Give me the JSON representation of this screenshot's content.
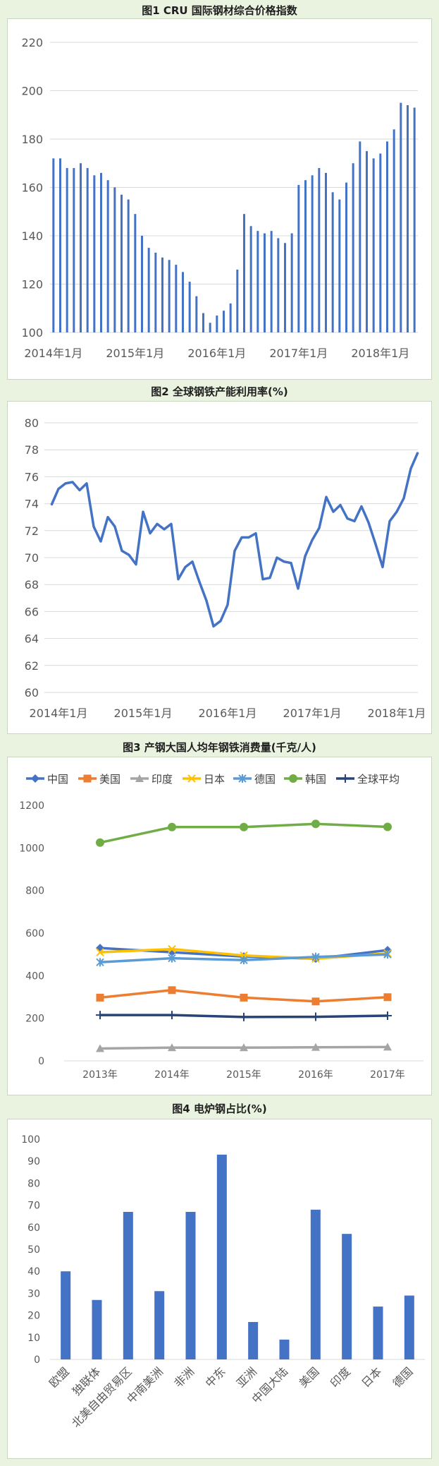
{
  "figures": [
    {
      "title": "图1    CRU 国际钢材综合价格指数"
    },
    {
      "title": "图2    全球钢铁产能利用率(%)"
    },
    {
      "title": "图3  产钢大国人均年钢铁消费量(千克/人)"
    },
    {
      "title": "图4    电炉钢占比(%)"
    }
  ],
  "chart_data": [
    {
      "type": "bar",
      "title": "图1    CRU 国际钢材综合价格指数",
      "ylim": [
        100,
        220
      ],
      "yticks": [
        100,
        120,
        140,
        160,
        180,
        200,
        220
      ],
      "xticks": [
        {
          "index": 0,
          "label": "2014年1月"
        },
        {
          "index": 12,
          "label": "2015年1月"
        },
        {
          "index": 24,
          "label": "2016年1月"
        },
        {
          "index": 36,
          "label": "2017年1月"
        },
        {
          "index": 48,
          "label": "2018年1月"
        }
      ],
      "color": "#4472c4",
      "values": [
        172,
        172,
        168,
        168,
        170,
        168,
        165,
        166,
        163,
        160,
        157,
        155,
        149,
        140,
        135,
        133,
        131,
        130,
        128,
        125,
        121,
        115,
        108,
        104,
        107,
        109,
        112,
        126,
        149,
        144,
        142,
        141,
        142,
        139,
        137,
        141,
        161,
        163,
        165,
        168,
        166,
        158,
        155,
        162,
        170,
        179,
        175,
        172,
        174,
        179,
        184,
        195,
        194,
        193
      ]
    },
    {
      "type": "line",
      "title": "图2    全球钢铁产能利用率(%)",
      "ylim": [
        60,
        80
      ],
      "yticks": [
        60,
        62,
        64,
        66,
        68,
        70,
        72,
        74,
        76,
        78,
        80
      ],
      "xticks": [
        {
          "index": 0,
          "label": "2014年1月"
        },
        {
          "index": 12,
          "label": "2015年1月"
        },
        {
          "index": 24,
          "label": "2016年1月"
        },
        {
          "index": 36,
          "label": "2017年1月"
        },
        {
          "index": 48,
          "label": "2018年1月"
        }
      ],
      "color": "#4472c4",
      "values": [
        73.9,
        75.1,
        75.5,
        75.6,
        75.0,
        75.5,
        72.3,
        71.2,
        73.0,
        72.3,
        70.5,
        70.2,
        69.5,
        73.4,
        71.8,
        72.5,
        72.1,
        72.5,
        68.4,
        69.3,
        69.7,
        68.2,
        66.8,
        64.9,
        65.3,
        66.5,
        70.5,
        71.5,
        71.5,
        71.8,
        68.4,
        68.5,
        70.0,
        69.7,
        69.6,
        67.7,
        70.1,
        71.3,
        72.2,
        74.5,
        73.4,
        73.9,
        72.9,
        72.7,
        73.8,
        72.6,
        71.0,
        69.3,
        72.7,
        73.4,
        74.4,
        76.6,
        77.8
      ]
    },
    {
      "type": "line",
      "title": "图3  产钢大国人均年钢铁消费量(千克/人)",
      "categories": [
        "2013年",
        "2014年",
        "2015年",
        "2016年",
        "2017年"
      ],
      "ylim": [
        0,
        1200
      ],
      "yticks": [
        0,
        200,
        400,
        600,
        800,
        1000,
        1200
      ],
      "ytick_labels": [
        "0",
        "200",
        "400",
        "600",
        "800",
        "1000",
        "1200"
      ],
      "series": [
        {
          "name": "中国",
          "color": "#4472c4",
          "marker": "diamond",
          "values": [
            530,
            510,
            490,
            480,
            520
          ]
        },
        {
          "name": "美国",
          "color": "#ed7d31",
          "marker": "square",
          "values": [
            297,
            332,
            297,
            279,
            299
          ]
        },
        {
          "name": "印度",
          "color": "#a5a5a5",
          "marker": "triangle",
          "values": [
            58,
            62,
            62,
            64,
            65
          ]
        },
        {
          "name": "日本",
          "color": "#ffc000",
          "marker": "x",
          "values": [
            510,
            525,
            495,
            480,
            505
          ]
        },
        {
          "name": "德国",
          "color": "#5b9bd5",
          "marker": "star",
          "values": [
            463,
            482,
            473,
            488,
            500
          ]
        },
        {
          "name": "韩国",
          "color": "#70ad47",
          "marker": "circle",
          "values": [
            1025,
            1098,
            1098,
            1113,
            1099
          ]
        },
        {
          "name": "全球平均",
          "color": "#264478",
          "marker": "plus",
          "values": [
            215,
            215,
            206,
            207,
            212
          ]
        }
      ]
    },
    {
      "type": "bar",
      "title": "图4    电炉钢占比(%)",
      "categories": [
        "欧盟",
        "独联体",
        "北美自由贸易区",
        "中南美洲",
        "非洲",
        "中东",
        "亚洲",
        "中国大陆",
        "美国",
        "印度",
        "日本",
        "德国"
      ],
      "values": [
        40,
        27,
        67,
        31,
        67,
        93,
        17,
        9,
        68,
        57,
        24,
        29
      ],
      "ylim": [
        0,
        100
      ],
      "yticks": [
        0,
        10,
        20,
        30,
        40,
        50,
        60,
        70,
        80,
        90,
        100
      ],
      "color": "#4472c4"
    }
  ]
}
